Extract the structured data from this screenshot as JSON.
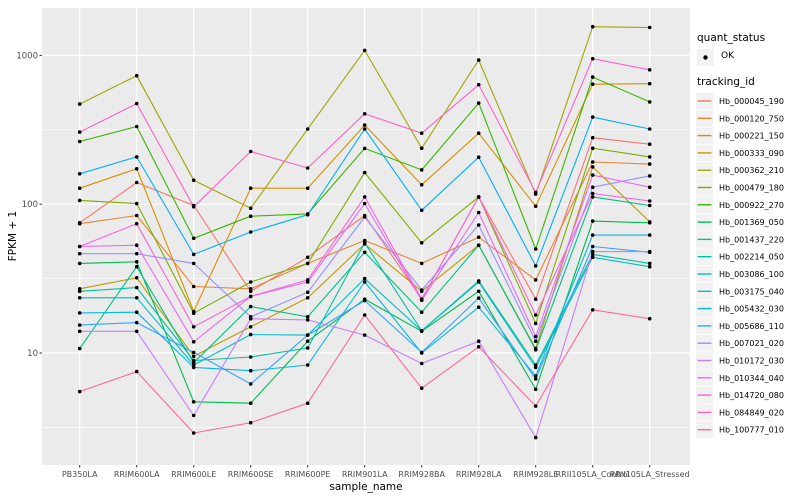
{
  "axes": {
    "y_title": "FPKM + 1",
    "x_title": "sample_name",
    "y_tick_labels": [
      "10",
      "100",
      "1000"
    ],
    "tick_label_color": "#4d4d4d"
  },
  "legend": {
    "quant_status_title": "quant_status",
    "ok_label": "OK",
    "tracking_title": "tracking_id",
    "key_background": "#F2F2F2",
    "position": "right"
  },
  "panel": {
    "background": "#EBEBEB",
    "grid_color": "#FFFFFF",
    "point_color": "#000000"
  },
  "chart_data": {
    "type": "line",
    "title": "",
    "xlabel": "sample_name",
    "ylabel": "FPKM + 1",
    "yscale": "log10",
    "ylim": [
      1.8,
      2085
    ],
    "y_major_ticks": [
      10,
      100,
      1000
    ],
    "y_minor_ticks": [
      3.162,
      31.62,
      316.2
    ],
    "grid": true,
    "legend_position": "right",
    "quant_status": "OK",
    "categories": [
      "PB350LA",
      "RRIM600LA",
      "RRIM600LE",
      "RRIM600SE",
      "RRIM600PE",
      "RRIM901LA",
      "RRIM928BA",
      "RRIM928LA",
      "RRIM928LE",
      "RRII105LA_Control",
      "RRII105LA_Stressed"
    ],
    "series": [
      {
        "name": "Hb_000045_190",
        "color": "#F8766D",
        "values": [
          75,
          140,
          98,
          26,
          44,
          84,
          23,
          112,
          23,
          280,
          253
        ]
      },
      {
        "name": "Hb_000120_750",
        "color": "#EA8331",
        "values": [
          74,
          84,
          28,
          27,
          40,
          57,
          40,
          60,
          31,
          192,
          186
        ]
      },
      {
        "name": "Hb_000221_150",
        "color": "#D89000",
        "values": [
          128,
          173,
          19,
          128,
          128,
          340,
          135,
          300,
          97,
          640,
          645
        ]
      },
      {
        "name": "Hb_000333_090",
        "color": "#C09B00",
        "values": [
          27,
          32,
          9.5,
          15,
          23.5,
          54,
          26,
          53,
          10.7,
          178,
          76
        ]
      },
      {
        "name": "Hb_000362_210",
        "color": "#A3A500",
        "values": [
          471,
          730,
          145,
          94,
          320,
          1080,
          238,
          930,
          117,
          1560,
          1540
        ]
      },
      {
        "name": "Hb_000479_180",
        "color": "#7CAE00",
        "values": [
          106,
          101,
          18.5,
          30,
          40,
          163,
          55,
          112,
          15.8,
          238,
          208
        ]
      },
      {
        "name": "Hb_000922_270",
        "color": "#39B600",
        "values": [
          264,
          333,
          59,
          83,
          86,
          237,
          170,
          478,
          50,
          715,
          487
        ]
      },
      {
        "name": "Hb_001369_050",
        "color": "#00BB4E",
        "values": [
          40,
          41,
          4.7,
          4.6,
          12,
          23,
          14,
          26,
          5.7,
          77,
          75
        ]
      },
      {
        "name": "Hb_001437_220",
        "color": "#00C087",
        "values": [
          10.7,
          38,
          8.6,
          20.5,
          17.5,
          47.5,
          18.8,
          53,
          10.5,
          112,
          98
        ]
      },
      {
        "name": "Hb_002214_050",
        "color": "#00C1A3",
        "values": [
          26,
          27.5,
          8.9,
          9.4,
          10.8,
          55,
          14.1,
          30.5,
          8.3,
          46,
          40
        ]
      },
      {
        "name": "Hb_003086_100",
        "color": "#00BFC4",
        "values": [
          23.5,
          23.5,
          8.3,
          13.3,
          13.2,
          31.6,
          14.1,
          30,
          8,
          44,
          38
        ]
      },
      {
        "name": "Hb_003175_040",
        "color": "#00BAE0",
        "values": [
          18.6,
          18.8,
          8,
          7.6,
          8.3,
          30,
          10,
          20.3,
          7,
          62,
          62
        ]
      },
      {
        "name": "Hb_005432_030",
        "color": "#00B0F6",
        "values": [
          160,
          208,
          46,
          65,
          85,
          320,
          91,
          207,
          38.5,
          385,
          320
        ]
      },
      {
        "name": "Hb_005686_110",
        "color": "#35A2FF",
        "values": [
          15.4,
          16,
          10.1,
          6.2,
          13.2,
          22.5,
          10.1,
          23.4,
          6.7,
          52,
          47.5
        ]
      },
      {
        "name": "Hb_007021_020",
        "color": "#9590FF",
        "values": [
          46.5,
          46.5,
          40,
          17.5,
          25.6,
          82,
          26.5,
          72.5,
          12,
          130,
          155
        ]
      },
      {
        "name": "Hb_010172_030",
        "color": "#C77CFF",
        "values": [
          14,
          14,
          3.8,
          17,
          16.7,
          13.2,
          8.5,
          12,
          2.7,
          48,
          48
        ]
      },
      {
        "name": "Hb_010344_040",
        "color": "#E76BF3",
        "values": [
          52,
          53,
          11.9,
          24,
          30,
          101,
          22.6,
          88,
          12.9,
          157,
          130
        ]
      },
      {
        "name": "Hb_014720_080",
        "color": "#FA62DB",
        "values": [
          52,
          74,
          15,
          24,
          31,
          112,
          23,
          112,
          18,
          118,
          105
        ]
      },
      {
        "name": "Hb_084849_020",
        "color": "#FF61CC",
        "values": [
          305,
          474,
          96,
          226,
          175,
          405,
          300,
          635,
          120,
          950,
          800
        ]
      },
      {
        "name": "Hb_100777_010",
        "color": "#FF6A98",
        "values": [
          5.5,
          7.5,
          2.9,
          3.4,
          4.6,
          18,
          5.8,
          11,
          4.4,
          19.5,
          17
        ]
      }
    ]
  }
}
